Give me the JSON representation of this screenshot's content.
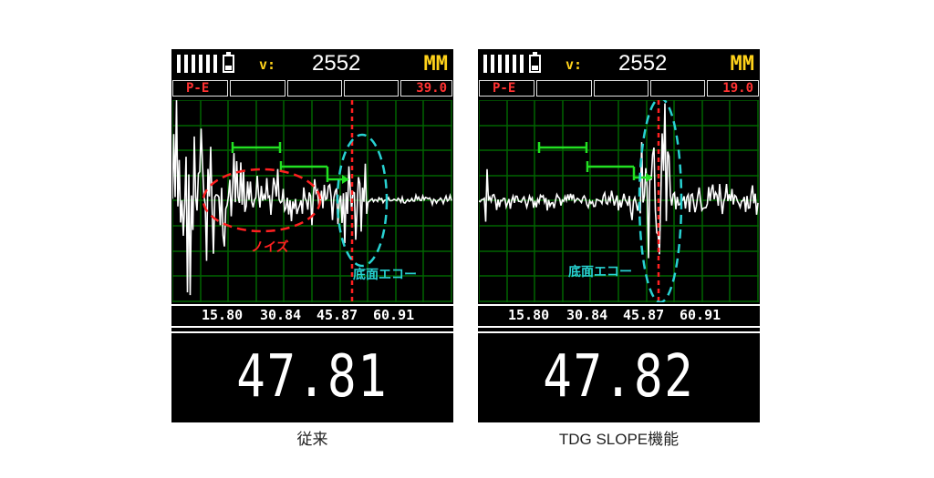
{
  "panels": [
    {
      "battery_icon": "battery-icon",
      "velocity_label": "v:",
      "velocity_value": "2552",
      "unit": "MM",
      "mode": "P-E",
      "gate_value": "39.0",
      "axis_ticks": [
        "15.80",
        "30.84",
        "45.87",
        "60.91"
      ],
      "noise_label": "ノイズ",
      "echo_label": "底面エコー",
      "reading": "47.81",
      "caption": "従来",
      "colors": {
        "grid": "#006400",
        "gate": "#22e022",
        "marker": "#ff2020",
        "echo_ellipse": "#28d2d2",
        "noise_ellipse": "#ff2020"
      }
    },
    {
      "battery_icon": "battery-icon",
      "velocity_label": "v:",
      "velocity_value": "2552",
      "unit": "MM",
      "mode": "P-E",
      "gate_value": "19.0",
      "axis_ticks": [
        "15.80",
        "30.84",
        "45.87",
        "60.91"
      ],
      "echo_label": "底面エコー",
      "reading": "47.82",
      "caption": "TDG SLOPE機能",
      "colors": {
        "grid": "#006400",
        "gate": "#22e022",
        "marker": "#ff2020",
        "echo_ellipse": "#28d2d2"
      }
    }
  ]
}
